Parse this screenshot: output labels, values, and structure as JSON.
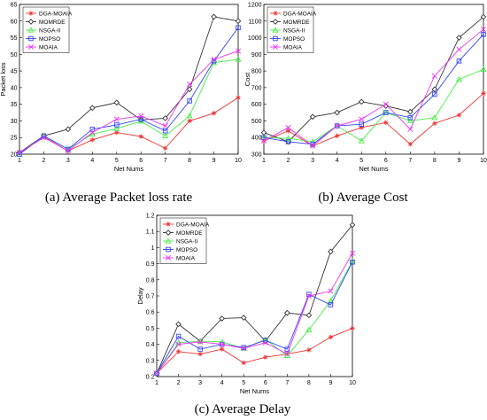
{
  "chart_data": [
    {
      "type": "line",
      "caption": "(a) Average Packet loss rate",
      "xlabel": "Net Nums",
      "ylabel": "Packet loss",
      "x": [
        1,
        2,
        3,
        4,
        5,
        6,
        7,
        8,
        9,
        10
      ],
      "xlim": [
        1,
        10
      ],
      "ylim": [
        20,
        65
      ],
      "yticks": [
        20,
        25,
        30,
        35,
        40,
        45,
        50,
        55,
        60,
        65
      ],
      "legend": "top-left",
      "series": [
        {
          "name": "DGA-MOAIA",
          "color": "#ee3333",
          "marker": "star",
          "values": [
            20.5,
            25.2,
            21.0,
            24.3,
            26.5,
            25.3,
            21.8,
            30.0,
            32.3,
            37.0
          ]
        },
        {
          "name": "MOMRDE",
          "color": "#333333",
          "marker": "diamond",
          "values": [
            20.5,
            25.5,
            27.5,
            33.9,
            35.5,
            30.3,
            30.8,
            39.5,
            61.3,
            60.0
          ]
        },
        {
          "name": "NSGA-II",
          "color": "#44ee44",
          "marker": "triangle",
          "values": [
            20.0,
            25.5,
            21.5,
            26.0,
            27.7,
            29.9,
            25.5,
            31.5,
            47.5,
            48.5
          ]
        },
        {
          "name": "MOPSO",
          "color": "#3344ff",
          "marker": "square",
          "values": [
            20.0,
            25.5,
            21.5,
            27.5,
            28.8,
            30.5,
            27.0,
            36.0,
            48.0,
            58.0
          ]
        },
        {
          "name": "MOAIA",
          "color": "#ee33ee",
          "marker": "x",
          "values": [
            20.5,
            25.0,
            21.0,
            26.5,
            30.5,
            31.5,
            28.5,
            41.0,
            48.5,
            51.0
          ]
        }
      ]
    },
    {
      "type": "line",
      "caption": "(b) Average Cost",
      "xlabel": "Net Nums",
      "ylabel": "Cost",
      "x": [
        1,
        2,
        3,
        4,
        5,
        6,
        7,
        8,
        9,
        10
      ],
      "xlim": [
        1,
        10
      ],
      "ylim": [
        300,
        1200
      ],
      "yticks": [
        300,
        400,
        500,
        600,
        700,
        800,
        900,
        1000,
        1100,
        1200
      ],
      "legend": "top-left",
      "series": [
        {
          "name": "DGA-MOAIA",
          "color": "#ee3333",
          "marker": "star",
          "values": [
            380,
            440,
            350,
            410,
            460,
            490,
            360,
            485,
            535,
            665
          ]
        },
        {
          "name": "MOMRDE",
          "color": "#333333",
          "marker": "diamond",
          "values": [
            430,
            375,
            525,
            550,
            615,
            590,
            555,
            690,
            1000,
            1125
          ]
        },
        {
          "name": "NSGA-II",
          "color": "#44ee44",
          "marker": "triangle",
          "values": [
            400,
            395,
            375,
            470,
            380,
            550,
            500,
            520,
            750,
            810
          ]
        },
        {
          "name": "MOPSO",
          "color": "#3344ff",
          "marker": "square",
          "values": [
            400,
            375,
            360,
            470,
            480,
            550,
            520,
            660,
            860,
            1020
          ]
        },
        {
          "name": "MOAIA",
          "color": "#ee33ee",
          "marker": "x",
          "values": [
            380,
            460,
            350,
            470,
            510,
            600,
            450,
            770,
            930,
            1050
          ]
        }
      ]
    },
    {
      "type": "line",
      "caption": "(c) Average Delay",
      "xlabel": "Net Nums",
      "ylabel": "Delay",
      "x": [
        1,
        2,
        3,
        4,
        5,
        6,
        7,
        8,
        9,
        10
      ],
      "xlim": [
        1,
        10
      ],
      "ylim": [
        0.2,
        1.2
      ],
      "yticks": [
        0.2,
        0.3,
        0.4,
        0.5,
        0.6,
        0.7,
        0.8,
        0.9,
        1,
        1.1,
        1.2
      ],
      "legend": "top-left",
      "series": [
        {
          "name": "DGA-MOAIA",
          "color": "#ee3333",
          "marker": "star",
          "values": [
            0.22,
            0.355,
            0.34,
            0.37,
            0.285,
            0.32,
            0.34,
            0.365,
            0.445,
            0.5
          ]
        },
        {
          "name": "MOMRDE",
          "color": "#333333",
          "marker": "diamond",
          "values": [
            0.22,
            0.525,
            0.42,
            0.56,
            0.565,
            0.42,
            0.595,
            0.58,
            0.975,
            1.14
          ]
        },
        {
          "name": "NSGA-II",
          "color": "#44ee44",
          "marker": "triangle",
          "values": [
            0.22,
            0.41,
            0.42,
            0.415,
            0.375,
            0.43,
            0.33,
            0.49,
            0.67,
            0.915
          ]
        },
        {
          "name": "MOPSO",
          "color": "#3344ff",
          "marker": "square",
          "values": [
            0.22,
            0.45,
            0.37,
            0.4,
            0.38,
            0.425,
            0.37,
            0.71,
            0.645,
            0.91
          ]
        },
        {
          "name": "MOAIA",
          "color": "#ee33ee",
          "marker": "x",
          "values": [
            0.22,
            0.4,
            0.415,
            0.4,
            0.375,
            0.41,
            0.34,
            0.7,
            0.73,
            0.965
          ]
        }
      ]
    }
  ]
}
